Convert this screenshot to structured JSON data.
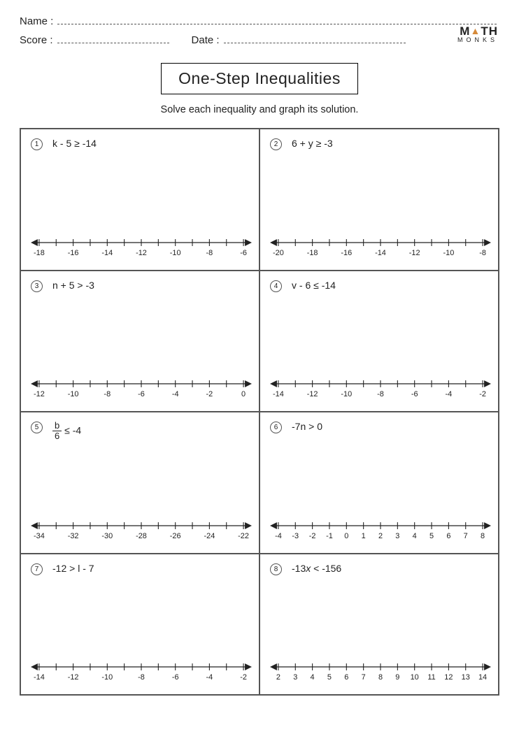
{
  "header": {
    "name_label": "Name :",
    "score_label": "Score :",
    "date_label": "Date :"
  },
  "logo": {
    "top": "M▲TH",
    "bottom": "MONKS"
  },
  "title": "One-Step Inequalities",
  "subtitle": "Solve each inequality and graph its solution.",
  "style": {
    "page_bg": "#ffffff",
    "border_color": "#555555",
    "text_color": "#222222",
    "logo_accent": "#d68a3a",
    "title_fontsize": 23,
    "body_fontsize": 14
  },
  "problems": [
    {
      "num": "1",
      "equation_html": "k - 5 ≥ -14",
      "ticks": [
        "-18",
        "",
        "-16",
        "",
        "-14",
        "",
        "-12",
        "",
        "-10",
        "",
        "-8",
        "",
        "-6"
      ]
    },
    {
      "num": "2",
      "equation_html": "6 + y ≥ -3",
      "ticks": [
        "-20",
        "",
        "-18",
        "",
        "-16",
        "",
        "-14",
        "",
        "-12",
        "",
        "-10",
        "",
        "-8"
      ]
    },
    {
      "num": "3",
      "equation_html": "n + 5 > -3",
      "ticks": [
        "-12",
        "",
        "-10",
        "",
        "-8",
        "",
        "-6",
        "",
        "-4",
        "",
        "-2",
        "",
        "0"
      ]
    },
    {
      "num": "4",
      "equation_html": "v - 6 ≤ -14",
      "ticks": [
        "-14",
        "",
        "-12",
        "",
        "-10",
        "",
        "-8",
        "",
        "-6",
        "",
        "-4",
        "",
        "-2"
      ]
    },
    {
      "num": "5",
      "equation_html": "<span class='frac'><span class='n'>b</span><span class='d'>6</span></span> ≤ -4",
      "ticks": [
        "-34",
        "",
        "-32",
        "",
        "-30",
        "",
        "-28",
        "",
        "-26",
        "",
        "-24",
        "",
        "-22"
      ]
    },
    {
      "num": "6",
      "equation_html": "-7n > 0",
      "ticks": [
        "-4",
        "-3",
        "-2",
        "-1",
        "0",
        "1",
        "2",
        "3",
        "4",
        "5",
        "6",
        "7",
        "8"
      ]
    },
    {
      "num": "7",
      "equation_html": "-12 > l - 7",
      "ticks": [
        "-14",
        "",
        "-12",
        "",
        "-10",
        "",
        "-8",
        "",
        "-6",
        "",
        "-4",
        "",
        "-2"
      ]
    },
    {
      "num": "8",
      "equation_html": "-13<i>x</i> < -156",
      "ticks": [
        "2",
        "3",
        "4",
        "5",
        "6",
        "7",
        "8",
        "9",
        "10",
        "11",
        "12",
        "13",
        "14"
      ]
    }
  ],
  "numberline_style": {
    "line_color": "#222222",
    "tick_height": 6,
    "arrow_size": 6,
    "label_fontsize": 11
  }
}
